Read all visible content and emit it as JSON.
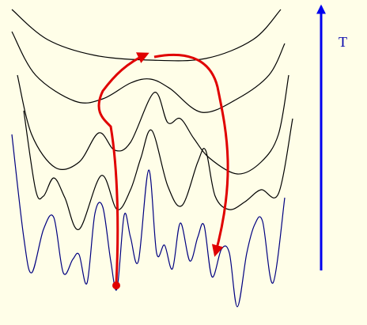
{
  "axis_label": "T"
}
